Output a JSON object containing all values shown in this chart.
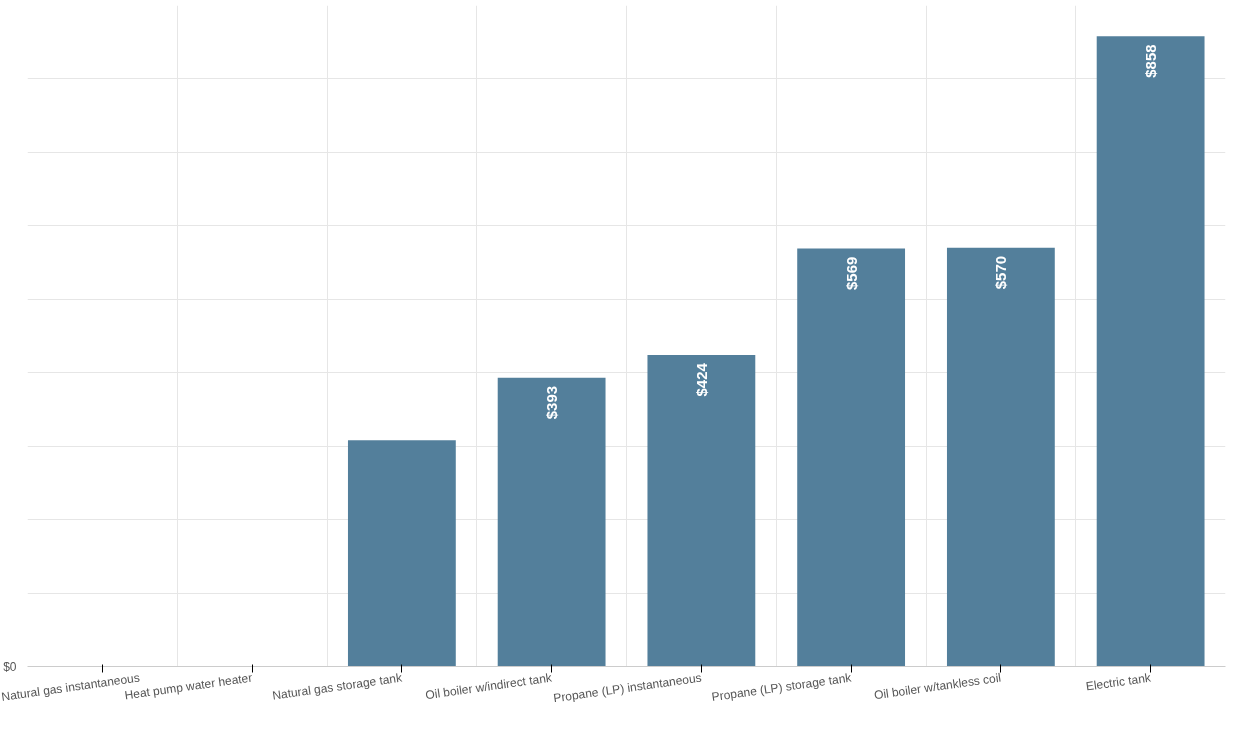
{
  "chart_data": {
    "type": "bar",
    "categories": [
      "Natural gas instantaneous",
      "Heat pump water heater",
      "Natural gas storage tank",
      "Oil boiler w/indirect tank",
      "Propane (LP) instantaneous",
      "Propane (LP) storage tank",
      "Oil boiler w/tankless coil",
      "Electric tank"
    ],
    "values": [
      null,
      null,
      308,
      393,
      424,
      569,
      570,
      858
    ],
    "value_labels": [
      null,
      null,
      null,
      "$393",
      "$424",
      "$569",
      "$570",
      "$858"
    ],
    "ylim": [
      0,
      900
    ],
    "annotations": [
      "$0"
    ],
    "color": "#537f9b",
    "grid": true
  }
}
